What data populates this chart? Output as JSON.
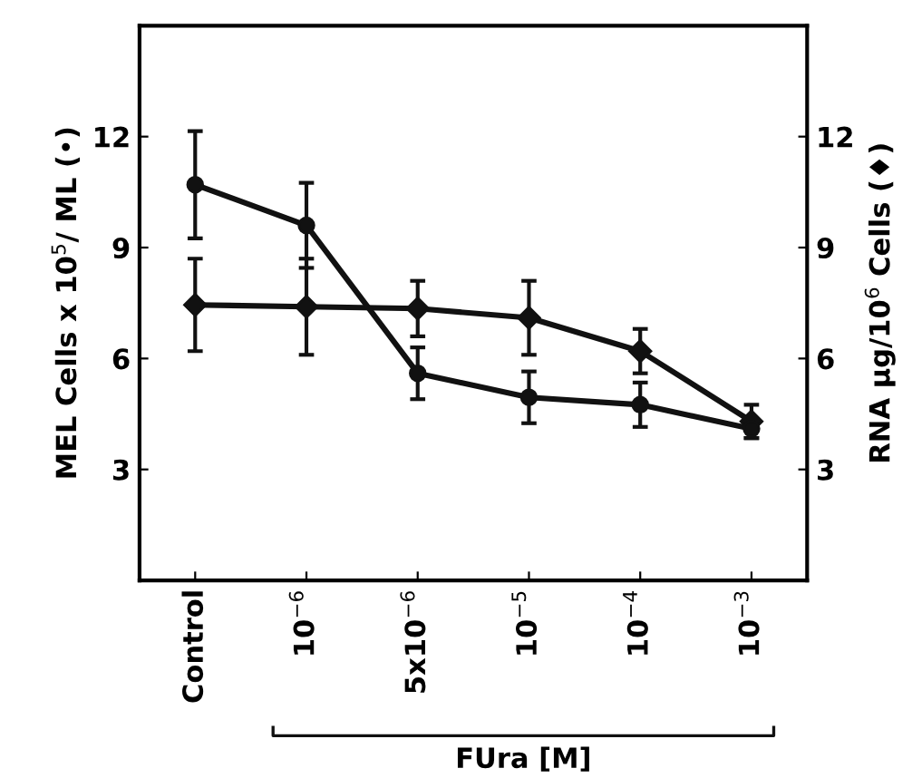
{
  "chart_data": {
    "type": "line",
    "categories": [
      "Control",
      "10$^{−6}$",
      "5x10$^{−6}$",
      "10$^{−5}$",
      "10$^{−4}$",
      "10$^{−3}$"
    ],
    "series": [
      {
        "color": "#111111",
        "marker": "circle",
        "values": [
          10.7,
          9.6,
          5.6,
          4.95,
          4.75,
          4.1
        ],
        "errors": [
          1.45,
          1.15,
          0.7,
          0.7,
          0.6,
          0.25
        ]
      },
      {
        "color": "#111111",
        "marker": "diamond",
        "values": [
          7.45,
          7.4,
          7.35,
          7.1,
          6.2,
          4.3
        ],
        "errors": [
          1.25,
          1.3,
          0.75,
          1.0,
          0.6,
          0.45
        ]
      }
    ],
    "xlabel": "FUra [M]",
    "ylabel": "MEL Cells x 10$^{5}$/ ML (•)",
    "y2label": "RNA µg/10$^{6}$ Cells (♦)",
    "ylim": [
      0,
      15
    ],
    "yticks": [
      3,
      6,
      9,
      12
    ],
    "y2lim": [
      0,
      15
    ],
    "y2ticks": [
      3,
      6,
      9,
      12
    ],
    "grid": false,
    "legend": false,
    "line_style": "solid"
  }
}
